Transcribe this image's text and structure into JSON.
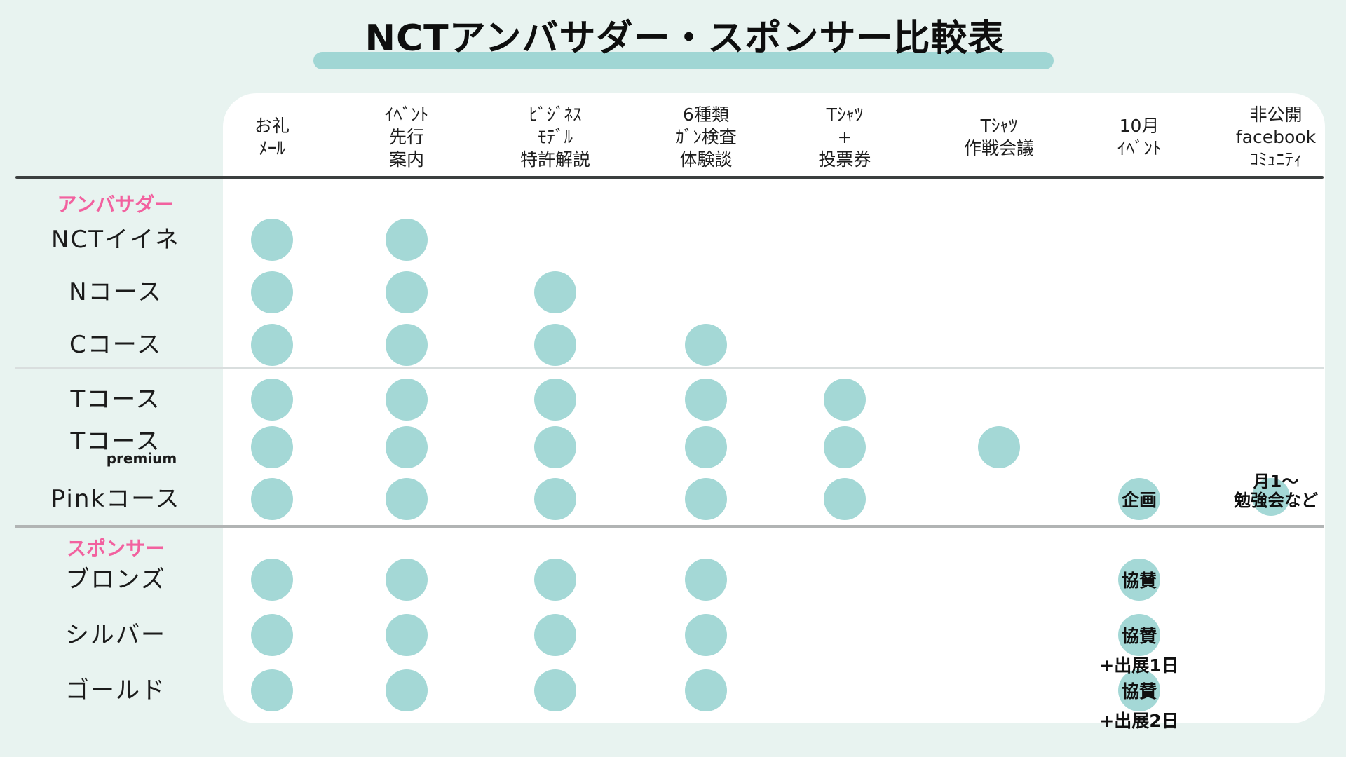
{
  "title": {
    "text": "NCTアンバサダー・スポンサー比較表"
  },
  "colors": {
    "background": "#e8f3f0",
    "card": "#ffffff",
    "dot_teal": "#a4d8d6",
    "title_highlight": "#a0d6d4",
    "section_pink": "#f2619f",
    "header_rule_dark": "#3b3f3f",
    "divider_light": "#d9dede",
    "divider_mid": "#b1b4b4"
  },
  "sections": [
    {
      "label": "アンバサダー"
    },
    {
      "label": "スポンサー"
    }
  ],
  "table": {
    "columns": [
      {
        "id": "thanks-mail",
        "lines": [
          "お礼",
          "ﾒｰﾙ"
        ]
      },
      {
        "id": "event-priority-info",
        "lines": [
          "ｲﾍﾞﾝﾄ",
          "先行",
          "案内"
        ]
      },
      {
        "id": "business-model-patent",
        "lines": [
          "ﾋﾞｼﾞﾈｽ",
          "ﾓﾃﾞﾙ",
          "特許解説"
        ]
      },
      {
        "id": "cancer-test-stories",
        "lines": [
          "6種類",
          "ｶﾞﾝ検査",
          "体験談"
        ]
      },
      {
        "id": "tshirt-vote",
        "lines": [
          "Tｼｬﾂ",
          "+",
          "投票券"
        ]
      },
      {
        "id": "tshirt-strategy-meeting",
        "lines": [
          "Tｼｬﾂ",
          "作戦会議"
        ]
      },
      {
        "id": "october-event",
        "lines": [
          "10月",
          "ｲﾍﾞﾝﾄ"
        ]
      },
      {
        "id": "private-facebook-community",
        "lines": [
          "非公開",
          "facebook",
          "ｺﾐｭﾆﾃｨ"
        ]
      }
    ],
    "rows": [
      {
        "id": "nct-iine",
        "section": 0,
        "label": "NCTイイネ",
        "cells": [
          "dot",
          "dot",
          "",
          "",
          "",
          "",
          "",
          ""
        ]
      },
      {
        "id": "n-course",
        "section": 0,
        "label": "Nコース",
        "cells": [
          "dot",
          "dot",
          "dot",
          "",
          "",
          "",
          "",
          ""
        ]
      },
      {
        "id": "c-course",
        "section": 0,
        "label": "Cコース",
        "cells": [
          "dot",
          "dot",
          "dot",
          "dot",
          "",
          "",
          "",
          ""
        ]
      },
      {
        "id": "t-course",
        "section": 0,
        "label": "Tコース",
        "cells": [
          "dot",
          "dot",
          "dot",
          "dot",
          "dot",
          "",
          "",
          ""
        ]
      },
      {
        "id": "t-course-premium",
        "section": 0,
        "label": "Tコース",
        "sub": "premium",
        "cells": [
          "dot",
          "dot",
          "dot",
          "dot",
          "dot",
          "dot",
          "",
          ""
        ]
      },
      {
        "id": "pink-course",
        "section": 0,
        "label": "Pinkコース",
        "cells": [
          "dot",
          "dot",
          "dot",
          "dot",
          "dot",
          "",
          {
            "dot": true,
            "label": "企画"
          },
          {
            "lines": [
              "月1〜",
              "勉強会など"
            ]
          }
        ]
      },
      {
        "id": "bronze",
        "section": 1,
        "label": "ブロンズ",
        "cells": [
          "dot",
          "dot",
          "dot",
          "dot",
          "",
          "",
          {
            "dot": true,
            "label": "協賛"
          },
          ""
        ]
      },
      {
        "id": "silver",
        "section": 1,
        "label": "シルバー",
        "cells": [
          "dot",
          "dot",
          "dot",
          "dot",
          "",
          "",
          {
            "dot": true,
            "label": "協賛",
            "below": "+出展1日"
          },
          ""
        ]
      },
      {
        "id": "gold",
        "section": 1,
        "label": "ゴールド",
        "cells": [
          "dot",
          "dot",
          "dot",
          "dot",
          "",
          "",
          {
            "dot": true,
            "label": "協賛",
            "below": "+出展2日"
          },
          ""
        ]
      }
    ]
  },
  "chart_data": {
    "type": "table",
    "title": "NCTアンバサダー・スポンサー比較表",
    "columns": [
      "お礼ﾒｰﾙ",
      "ｲﾍﾞﾝﾄ先行案内",
      "ﾋﾞｼﾞﾈｽﾓﾃﾞﾙ特許解説",
      "6種類ｶﾞﾝ検査体験談",
      "Tｼｬﾂ+投票券",
      "Tｼｬﾂ作戦会議",
      "10月ｲﾍﾞﾝﾄ",
      "非公開facebookｺﾐｭﾆﾃｨ"
    ],
    "sections": [
      {
        "name": "アンバサダー",
        "rows": [
          {
            "name": "NCTイイネ",
            "values": [
              "●",
              "●",
              "",
              "",
              "",
              "",
              "",
              ""
            ]
          },
          {
            "name": "Nコース",
            "values": [
              "●",
              "●",
              "●",
              "",
              "",
              "",
              "",
              ""
            ]
          },
          {
            "name": "Cコース",
            "values": [
              "●",
              "●",
              "●",
              "●",
              "",
              "",
              "",
              ""
            ]
          },
          {
            "name": "Tコース",
            "values": [
              "●",
              "●",
              "●",
              "●",
              "●",
              "",
              "",
              ""
            ]
          },
          {
            "name": "Tコース premium",
            "values": [
              "●",
              "●",
              "●",
              "●",
              "●",
              "●",
              "",
              ""
            ]
          },
          {
            "name": "Pinkコース",
            "values": [
              "●",
              "●",
              "●",
              "●",
              "●",
              "",
              "企画",
              "月1〜勉強会など"
            ]
          }
        ]
      },
      {
        "name": "スポンサー",
        "rows": [
          {
            "name": "ブロンズ",
            "values": [
              "●",
              "●",
              "●",
              "●",
              "",
              "",
              "協賛",
              ""
            ]
          },
          {
            "name": "シルバー",
            "values": [
              "●",
              "●",
              "●",
              "●",
              "",
              "",
              "協賛+出展1日",
              ""
            ]
          },
          {
            "name": "ゴールド",
            "values": [
              "●",
              "●",
              "●",
              "●",
              "",
              "",
              "協賛+出展2日",
              ""
            ]
          }
        ]
      }
    ],
    "legend_position": "none",
    "grid": false
  }
}
